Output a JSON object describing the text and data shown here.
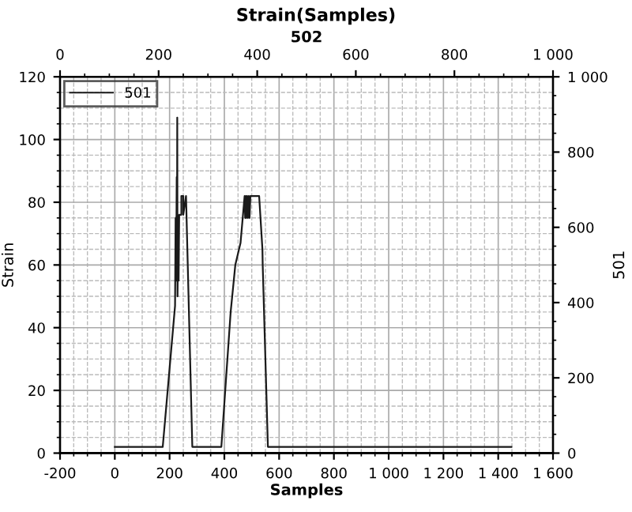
{
  "chart_data": {
    "type": "line",
    "title": "Strain(Samples)",
    "xlabel": "Samples",
    "ylabel": "Strain",
    "x2label": "502",
    "y2label": "501",
    "xlim": [
      -200,
      1600
    ],
    "xticks": [
      -200,
      0,
      200,
      400,
      600,
      800,
      {
        "value": 1000,
        "label": "1 000"
      },
      {
        "value": 1200,
        "label": "1 200"
      },
      {
        "value": 1400,
        "label": "1 400"
      },
      {
        "value": 1600,
        "label": "1 600"
      }
    ],
    "ylim": [
      0,
      120
    ],
    "yticks": [
      0,
      20,
      40,
      60,
      80,
      100,
      120
    ],
    "x2lim": [
      0,
      1000
    ],
    "x2ticks": [
      0,
      200,
      400,
      600,
      800,
      {
        "value": 1000,
        "label": "1 000"
      }
    ],
    "y2lim": [
      0,
      1000
    ],
    "y2ticks": [
      0,
      200,
      400,
      600,
      800,
      {
        "value": 1000,
        "label": "1 000"
      }
    ],
    "grid": true,
    "legend": "top left",
    "marker": "none",
    "line_style": "solid",
    "series": [
      {
        "name": "501",
        "color": "#1a1a1a",
        "x": [
          0,
          175,
          220,
          222,
          224,
          226,
          227,
          228,
          229,
          231,
          233,
          235,
          238,
          243,
          243,
          250,
          250,
          260,
          283,
          389,
          423,
          440,
          459,
          474,
          476,
          478,
          480,
          483,
          486,
          489,
          492,
          495,
          497,
          500,
          527,
          539,
          540,
          559,
          1448
        ],
        "values": [
          2,
          2,
          47,
          75,
          55,
          88,
          60,
          107,
          50,
          70,
          55,
          76,
          76,
          76,
          82,
          82,
          76,
          82,
          2,
          2,
          45,
          60,
          67,
          82,
          75,
          82,
          75,
          82,
          75,
          82,
          75,
          82,
          82,
          82,
          82,
          65,
          60,
          2,
          2
        ]
      }
    ]
  }
}
